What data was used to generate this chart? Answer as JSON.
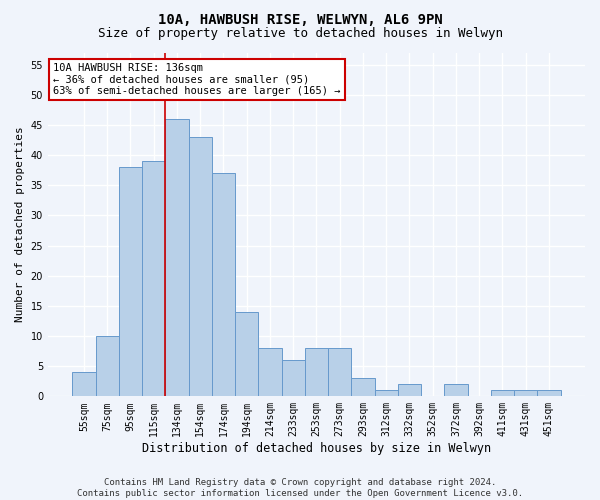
{
  "title1": "10A, HAWBUSH RISE, WELWYN, AL6 9PN",
  "title2": "Size of property relative to detached houses in Welwyn",
  "xlabel": "Distribution of detached houses by size in Welwyn",
  "ylabel": "Number of detached properties",
  "categories": [
    "55sqm",
    "75sqm",
    "95sqm",
    "115sqm",
    "134sqm",
    "154sqm",
    "174sqm",
    "194sqm",
    "214sqm",
    "233sqm",
    "253sqm",
    "273sqm",
    "293sqm",
    "312sqm",
    "332sqm",
    "352sqm",
    "372sqm",
    "392sqm",
    "411sqm",
    "431sqm",
    "451sqm"
  ],
  "values": [
    4,
    10,
    38,
    39,
    46,
    43,
    37,
    14,
    8,
    6,
    8,
    8,
    3,
    1,
    2,
    0,
    2,
    0,
    1,
    1,
    1
  ],
  "bar_color": "#b8d0e8",
  "bar_edge_color": "#6699cc",
  "vline_color": "#cc0000",
  "vline_x_index": 4,
  "annotation_line1": "10A HAWBUSH RISE: 136sqm",
  "annotation_line2": "← 36% of detached houses are smaller (95)",
  "annotation_line3": "63% of semi-detached houses are larger (165) →",
  "annotation_box_facecolor": "#ffffff",
  "annotation_box_edgecolor": "#cc0000",
  "ylim": [
    0,
    57
  ],
  "yticks": [
    0,
    5,
    10,
    15,
    20,
    25,
    30,
    35,
    40,
    45,
    50,
    55
  ],
  "bg_color": "#f0f4fb",
  "plot_bg_color": "#f0f4fb",
  "grid_color": "#ffffff",
  "title1_fontsize": 10,
  "title2_fontsize": 9,
  "xlabel_fontsize": 8.5,
  "ylabel_fontsize": 8,
  "tick_fontsize": 7,
  "annotation_fontsize": 7.5,
  "footer_fontsize": 6.5,
  "footer1": "Contains HM Land Registry data © Crown copyright and database right 2024.",
  "footer2": "Contains public sector information licensed under the Open Government Licence v3.0."
}
